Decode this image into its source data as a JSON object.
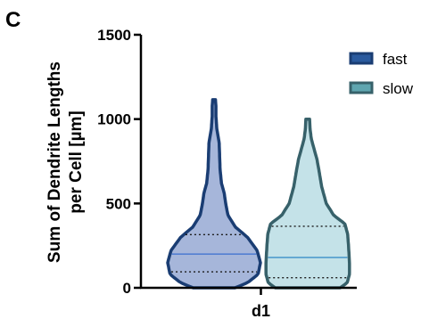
{
  "chart_data": {
    "type": "violin",
    "panel_label": "C",
    "ylabel_lines": [
      "Sum of Dendrite Lengths",
      "per Cell [µm]"
    ],
    "categories": [
      "d1"
    ],
    "ylim": [
      0,
      1500
    ],
    "yticks": [
      0,
      500,
      1000,
      1500
    ],
    "ytick_labels": [
      "0",
      "500",
      "1000",
      "1500"
    ],
    "legend_position": "top-right",
    "legend": [
      "fast",
      "slow"
    ],
    "series": [
      {
        "name": "fast",
        "fill": "#a6b6da",
        "edge": "#1a3d73",
        "legend_fill": "#2a5a9e",
        "median": 200,
        "q1": 95,
        "q3": 315,
        "min": 0,
        "max": 1115,
        "profile": [
          [
            0,
            0.45
          ],
          [
            30,
            0.72
          ],
          [
            80,
            0.95
          ],
          [
            150,
            1.0
          ],
          [
            220,
            0.93
          ],
          [
            300,
            0.72
          ],
          [
            360,
            0.46
          ],
          [
            430,
            0.3
          ],
          [
            500,
            0.25
          ],
          [
            560,
            0.22
          ],
          [
            620,
            0.16
          ],
          [
            700,
            0.13
          ],
          [
            780,
            0.12
          ],
          [
            860,
            0.11
          ],
          [
            940,
            0.06
          ],
          [
            1020,
            0.04
          ],
          [
            1080,
            0.04
          ],
          [
            1115,
            0.03
          ]
        ]
      },
      {
        "name": "slow",
        "fill": "#c4e2e8",
        "edge": "#37616a",
        "legend_fill": "#5fa6b0",
        "median": 180,
        "q1": 60,
        "q3": 365,
        "min": 0,
        "max": 1000,
        "profile": [
          [
            0,
            0.7
          ],
          [
            30,
            0.85
          ],
          [
            80,
            0.9
          ],
          [
            150,
            0.9
          ],
          [
            250,
            0.88
          ],
          [
            320,
            0.86
          ],
          [
            380,
            0.8
          ],
          [
            430,
            0.56
          ],
          [
            500,
            0.4
          ],
          [
            600,
            0.3
          ],
          [
            700,
            0.24
          ],
          [
            760,
            0.2
          ],
          [
            820,
            0.14
          ],
          [
            880,
            0.08
          ],
          [
            940,
            0.05
          ],
          [
            1000,
            0.04
          ]
        ]
      }
    ]
  }
}
